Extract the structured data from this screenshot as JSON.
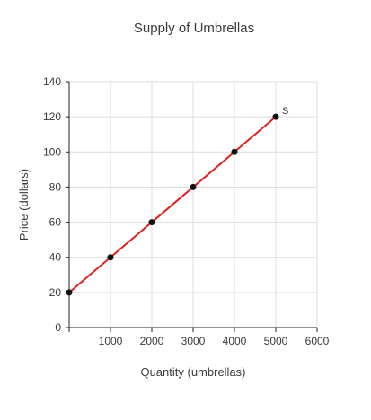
{
  "chart_data": {
    "type": "line",
    "title": "Supply of Umbrellas",
    "xlabel": "Quantity (umbrellas)",
    "ylabel": "Price (dollars)",
    "xlim": [
      0,
      6000
    ],
    "ylim": [
      0,
      140
    ],
    "xticks": [
      1000,
      2000,
      3000,
      4000,
      5000,
      6000
    ],
    "yticks": [
      0,
      20,
      40,
      60,
      80,
      100,
      120,
      140
    ],
    "grid": true,
    "series": [
      {
        "name": "S",
        "color": "#e0211d",
        "marker_color": "#111111",
        "x": [
          0,
          1000,
          2000,
          3000,
          4000,
          5000
        ],
        "y": [
          20,
          40,
          60,
          80,
          100,
          120
        ]
      }
    ]
  }
}
